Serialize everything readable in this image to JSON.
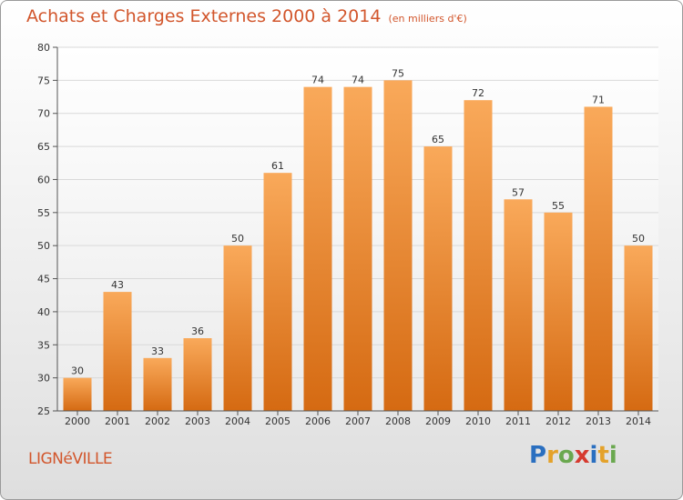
{
  "title": "Achats et Charges Externes 2000 à 2014",
  "subtitle": "(en milliers d'€)",
  "commune": "LIGNéVILLE",
  "logo": {
    "text": "Proxiti",
    "letters": [
      {
        "char": "P",
        "color": "#2a6fc0"
      },
      {
        "char": "r",
        "color": "#e4a22a"
      },
      {
        "char": "o",
        "color": "#6aa84f"
      },
      {
        "char": "x",
        "color": "#d63a2f"
      },
      {
        "char": "i",
        "color": "#2a6fc0"
      },
      {
        "char": "t",
        "color": "#e4a22a"
      },
      {
        "char": "i",
        "color": "#6aa84f"
      }
    ]
  },
  "colors": {
    "bar_top": "#f9a95a",
    "bar_bottom": "#d56a12",
    "title": "#d2562c",
    "grid": "#d9d9d9"
  },
  "chart_data": {
    "type": "bar",
    "title": "Achats et Charges Externes 2000 à 2014",
    "subtitle": "(en milliers d'€)",
    "categories": [
      "2000",
      "2001",
      "2002",
      "2003",
      "2004",
      "2005",
      "2006",
      "2007",
      "2008",
      "2009",
      "2010",
      "2011",
      "2012",
      "2013",
      "2014"
    ],
    "values": [
      30,
      43,
      33,
      36,
      50,
      61,
      74,
      74,
      75,
      65,
      72,
      57,
      55,
      71,
      50
    ],
    "xlabel": "",
    "ylabel": "",
    "ylim": [
      25,
      80
    ],
    "yticks": [
      25,
      30,
      35,
      40,
      45,
      50,
      55,
      60,
      65,
      70,
      75,
      80
    ],
    "grid": true,
    "data_labels": true
  }
}
